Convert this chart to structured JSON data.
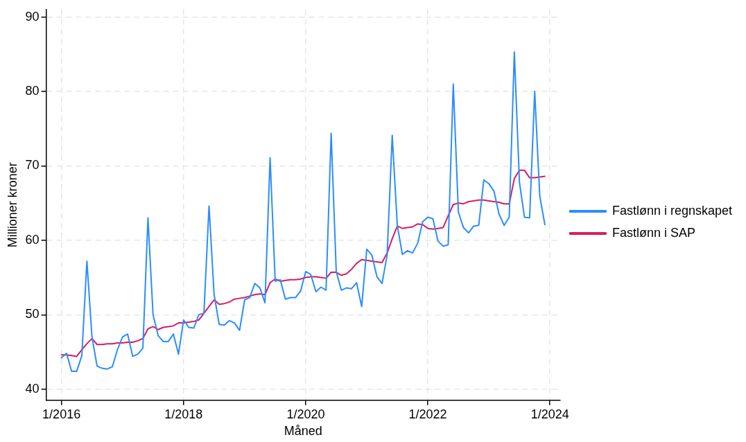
{
  "chart_data": {
    "type": "line",
    "xlabel": "Måned",
    "ylabel": "Millioner kroner",
    "x": [
      "2016-01",
      "2016-02",
      "2016-03",
      "2016-04",
      "2016-05",
      "2016-06",
      "2016-07",
      "2016-08",
      "2016-09",
      "2016-10",
      "2016-11",
      "2016-12",
      "2017-01",
      "2017-02",
      "2017-03",
      "2017-04",
      "2017-05",
      "2017-06",
      "2017-07",
      "2017-08",
      "2017-09",
      "2017-10",
      "2017-11",
      "2017-12",
      "2018-01",
      "2018-02",
      "2018-03",
      "2018-04",
      "2018-05",
      "2018-06",
      "2018-07",
      "2018-08",
      "2018-09",
      "2018-10",
      "2018-11",
      "2018-12",
      "2019-01",
      "2019-02",
      "2019-03",
      "2019-04",
      "2019-05",
      "2019-06",
      "2019-07",
      "2019-08",
      "2019-09",
      "2019-10",
      "2019-11",
      "2019-12",
      "2020-01",
      "2020-02",
      "2020-03",
      "2020-04",
      "2020-05",
      "2020-06",
      "2020-07",
      "2020-08",
      "2020-09",
      "2020-10",
      "2020-11",
      "2020-12",
      "2021-01",
      "2021-02",
      "2021-03",
      "2021-04",
      "2021-05",
      "2021-06",
      "2021-07",
      "2021-08",
      "2021-09",
      "2021-10",
      "2021-11",
      "2021-12",
      "2022-01",
      "2022-02",
      "2022-03",
      "2022-04",
      "2022-05",
      "2022-06",
      "2022-07",
      "2022-08",
      "2022-09",
      "2022-10",
      "2022-11",
      "2022-12",
      "2023-01",
      "2023-02",
      "2023-03",
      "2023-04",
      "2023-05",
      "2023-06",
      "2023-07",
      "2023-08",
      "2023-09",
      "2023-10",
      "2023-11",
      "2023-12"
    ],
    "series": [
      {
        "name": "Fastlønn i regnskapet",
        "color": "#2b8cff",
        "values": [
          44.2,
          44.8,
          42.4,
          42.4,
          44.5,
          57.2,
          47,
          43.1,
          42.8,
          42.7,
          43,
          45.3,
          47,
          47.4,
          44.4,
          44.7,
          45.5,
          63,
          50,
          47.2,
          46.4,
          46.4,
          47.4,
          44.7,
          49.3,
          48.3,
          48.2,
          50,
          50.2,
          64.6,
          52.7,
          48.7,
          48.6,
          49.2,
          48.9,
          47.9,
          52,
          52.3,
          54.2,
          53.6,
          51.6,
          71.1,
          54.5,
          54.7,
          52.1,
          52.3,
          52.3,
          53.2,
          55.8,
          55.4,
          53.1,
          53.7,
          53.3,
          74.4,
          55.8,
          53.3,
          53.6,
          53.5,
          54.3,
          51.1,
          58.8,
          58,
          55.1,
          54.2,
          58,
          74.1,
          62,
          58.1,
          58.6,
          58.3,
          59.6,
          62.5,
          63.1,
          62.9,
          59.9,
          59.2,
          59.4,
          81,
          63.8,
          61.7,
          61,
          61.9,
          62,
          68.1,
          67.6,
          66.6,
          63.5,
          62,
          63.1,
          85.3,
          67.8,
          63.1,
          63,
          80,
          65.9,
          62.1
        ]
      },
      {
        "name": "Fastlønn i SAP",
        "color": "#d81b60",
        "values": [
          44.6,
          44.6,
          44.5,
          44.4,
          45.3,
          46.1,
          46.8,
          46,
          46,
          46.1,
          46.1,
          46.2,
          46.2,
          46.3,
          46.3,
          46.5,
          46.8,
          48.1,
          48.4,
          48,
          48.3,
          48.4,
          48.5,
          48.9,
          48.9,
          49,
          49.1,
          49.3,
          50.2,
          51.1,
          52,
          51.4,
          51.5,
          51.7,
          52.1,
          52.2,
          52.3,
          52.5,
          52.7,
          52.8,
          52.7,
          54.3,
          54.8,
          54.5,
          54.6,
          54.7,
          54.7,
          54.8,
          55,
          55.1,
          55.1,
          55,
          54.9,
          55.7,
          55.7,
          55.3,
          55.5,
          56.1,
          56.9,
          57.4,
          57.3,
          57.2,
          57.1,
          57,
          58.3,
          60.2,
          61.9,
          61.6,
          61.7,
          61.8,
          62.2,
          62.1,
          61.6,
          61.5,
          61.6,
          61.7,
          63.3,
          64.8,
          65,
          64.9,
          65.2,
          65.3,
          65.4,
          65.4,
          65.3,
          65.2,
          65.1,
          64.9,
          64.9,
          68.3,
          69.4,
          69.4,
          68.4,
          68.4,
          68.5,
          68.6
        ]
      }
    ],
    "xlim": [
      "2015-10",
      "2024-03"
    ],
    "xticks": [
      {
        "value": "2016-01",
        "label": "1/2016"
      },
      {
        "value": "2018-01",
        "label": "1/2018"
      },
      {
        "value": "2020-01",
        "label": "1/2020"
      },
      {
        "value": "2022-01",
        "label": "1/2022"
      },
      {
        "value": "2024-01",
        "label": "1/2024"
      }
    ],
    "ylim": [
      38.5,
      91
    ],
    "yticks": [
      40,
      50,
      60,
      70,
      80,
      90
    ],
    "grid": true,
    "legend": "right",
    "line_style": "solid",
    "marker": "none"
  }
}
